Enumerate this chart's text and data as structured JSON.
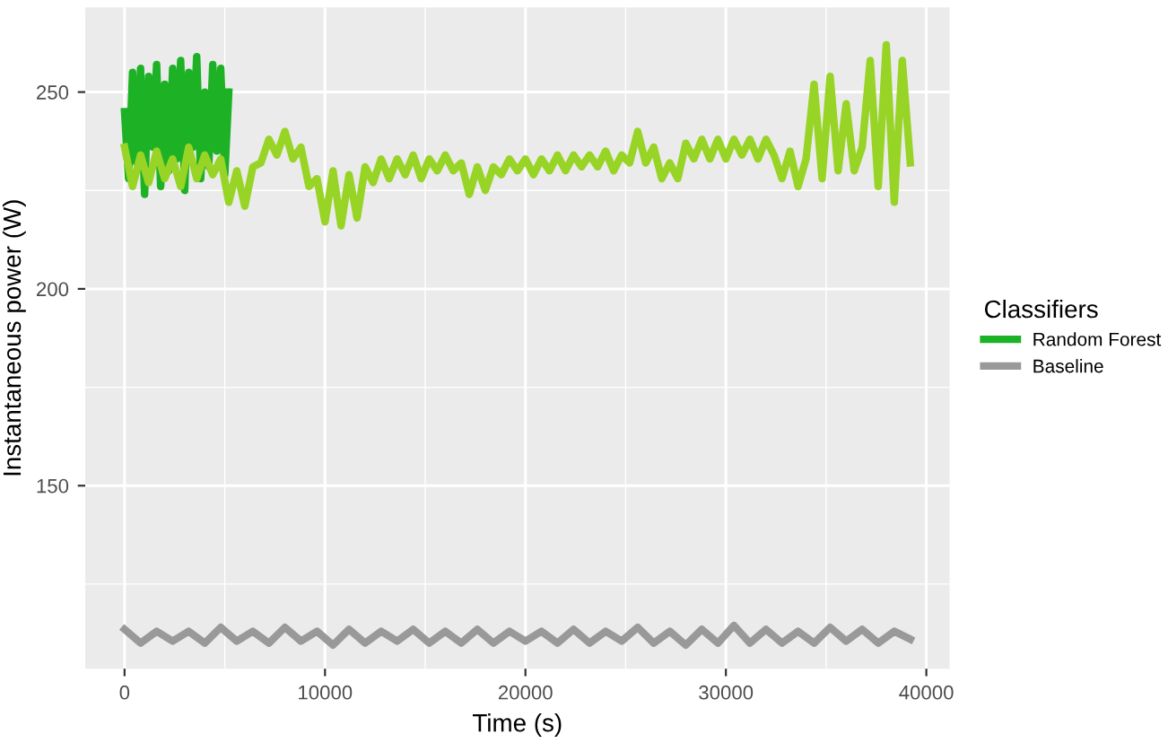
{
  "chart_data": {
    "type": "line",
    "xlabel": "Time (s)",
    "ylabel": "Instantaneous power (W)",
    "legend_title": "Classifiers",
    "legend": "right",
    "grid": true,
    "xlim": [
      -1960,
      41160
    ],
    "ylim": [
      103.5,
      271.5
    ],
    "xticks": [
      0,
      10000,
      20000,
      30000,
      40000
    ],
    "yticks": [
      150,
      200,
      250
    ],
    "series": [
      {
        "name": "Random Forest",
        "color": "#1db125",
        "x": [
          0,
          200,
          400,
          600,
          800,
          1000,
          1200,
          1400,
          1600,
          1800,
          2000,
          2200,
          2400,
          2600,
          2800,
          3000,
          3200,
          3400,
          3600,
          3800,
          4000,
          4200,
          4400,
          4600,
          4800,
          5000,
          5200
        ],
        "values": [
          245,
          228,
          255,
          232,
          256,
          224,
          254,
          236,
          257,
          226,
          252,
          230,
          256,
          233,
          258,
          225,
          255,
          236,
          259,
          228,
          250,
          231,
          257,
          235,
          256,
          229,
          250
        ]
      },
      {
        "color": "#97d425",
        "x": [
          0,
          400,
          800,
          1200,
          1600,
          2000,
          2400,
          2800,
          3200,
          3600,
          4000,
          4400,
          4800,
          5200,
          5600,
          6000,
          6400,
          6800,
          7200,
          7600,
          8000,
          8400,
          8800,
          9200,
          9600,
          10000,
          10400,
          10800,
          11200,
          11600,
          12000,
          12400,
          12800,
          13200,
          13600,
          14000,
          14400,
          14800,
          15200,
          15600,
          16000,
          16400,
          16800,
          17200,
          17600,
          18000,
          18400,
          18800,
          19200,
          19600,
          20000,
          20400,
          20800,
          21200,
          21600,
          22000,
          22400,
          22800,
          23200,
          23600,
          24000,
          24400,
          24800,
          25200,
          25600,
          26000,
          26400,
          26800,
          27200,
          27600,
          28000,
          28400,
          28800,
          29200,
          29600,
          30000,
          30400,
          30800,
          31200,
          31600,
          32000,
          32400,
          32800,
          33200,
          33600,
          34000,
          34400,
          34800,
          35200,
          35600,
          36000,
          36400,
          36800,
          37200,
          37600,
          38000,
          38400,
          38800,
          39200
        ],
        "values": [
          236,
          226,
          234,
          227,
          235,
          228,
          233,
          226,
          236,
          228,
          234,
          229,
          233,
          222,
          230,
          221,
          231,
          232,
          238,
          234,
          240,
          233,
          236,
          226,
          228,
          217,
          230,
          216,
          229,
          218,
          231,
          227,
          233,
          228,
          233,
          229,
          234,
          228,
          233,
          230,
          234,
          230,
          232,
          224,
          231,
          225,
          231,
          229,
          233,
          230,
          233,
          229,
          233,
          230,
          234,
          230,
          234,
          231,
          234,
          231,
          235,
          230,
          234,
          232,
          240,
          232,
          236,
          228,
          232,
          228,
          237,
          233,
          238,
          233,
          238,
          233,
          238,
          234,
          238,
          233,
          238,
          234,
          228,
          235,
          226,
          233,
          252,
          228,
          254,
          230,
          247,
          230,
          236,
          258,
          226,
          262,
          222,
          258,
          232
        ]
      },
      {
        "name": "Baseline",
        "color": "#999999",
        "x": [
          0,
          800,
          1600,
          2400,
          3200,
          4000,
          4800,
          5600,
          6400,
          7200,
          8000,
          8800,
          9600,
          10400,
          11200,
          12000,
          12800,
          13600,
          14400,
          15200,
          16000,
          16800,
          17600,
          18400,
          19200,
          20000,
          20800,
          21600,
          22400,
          23200,
          24000,
          24800,
          25600,
          26400,
          27200,
          28000,
          28800,
          29600,
          30400,
          31200,
          32000,
          32800,
          33600,
          34400,
          35200,
          36000,
          36800,
          37600,
          38400,
          39200
        ],
        "values": [
          113.5,
          110,
          113,
          110.5,
          113,
          110,
          114,
          110.5,
          113,
          110,
          114,
          110.5,
          113,
          109.5,
          113.5,
          110,
          113,
          110.5,
          113.5,
          110,
          113,
          110,
          113.5,
          110,
          113,
          110.5,
          113,
          110,
          113.5,
          110,
          113,
          110.5,
          114,
          110,
          113,
          109.5,
          113.5,
          110,
          114.5,
          110,
          113.5,
          110,
          113,
          110,
          114,
          110.5,
          113.5,
          110,
          113,
          111
        ]
      }
    ]
  }
}
